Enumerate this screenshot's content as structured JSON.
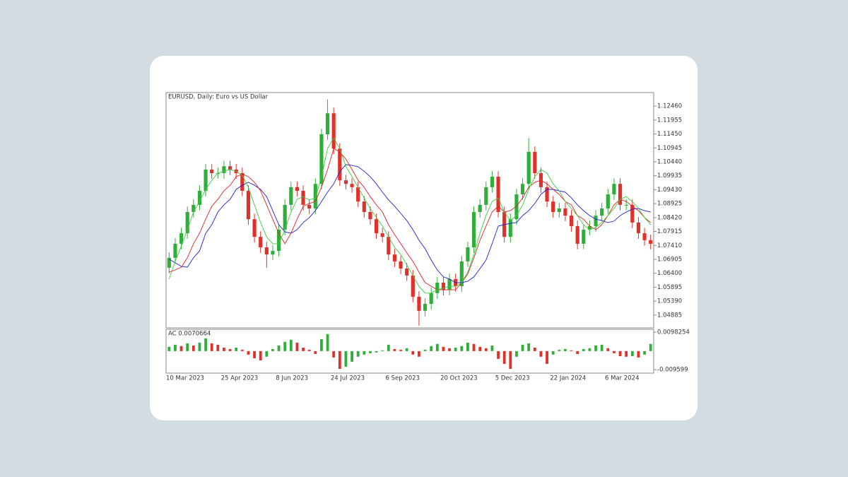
{
  "chart_data": [
    {
      "type": "candlestick",
      "title": "EURUSD, Daily:  Euro vs US Dollar",
      "up_color": "#2fae3a",
      "down_color": "#e0302a",
      "ylim": [
        1.0442,
        1.1295
      ],
      "yticks": [
        1.04885,
        {
          "value": 1.0539,
          "label": "1.05390"
        },
        1.05895,
        {
          "value": 1.064,
          "label": "1.06400"
        },
        1.06905,
        {
          "value": 1.0741,
          "label": "1.07410"
        },
        1.07915,
        {
          "value": 1.0842,
          "label": "1.08420"
        },
        1.08925,
        {
          "value": 1.0943,
          "label": "1.09430"
        },
        1.09935,
        {
          "value": 1.1044,
          "label": "1.10440"
        },
        1.10945,
        {
          "value": 1.1145,
          "label": "1.11450"
        },
        1.11955,
        {
          "value": 1.1246,
          "label": "1.12460"
        }
      ],
      "categories": [
        "10 Mar 2023",
        null,
        null,
        null,
        null,
        null,
        null,
        null,
        null,
        "25 Apr 2023",
        null,
        null,
        null,
        null,
        null,
        null,
        null,
        null,
        "8 Jun 2023",
        null,
        null,
        null,
        null,
        null,
        null,
        null,
        null,
        "24 Jul 2023",
        null,
        null,
        null,
        null,
        null,
        null,
        null,
        null,
        "6 Sep 2023",
        null,
        null,
        null,
        null,
        null,
        null,
        null,
        null,
        "20 Oct 2023",
        null,
        null,
        null,
        null,
        null,
        null,
        null,
        null,
        "5 Dec 2023",
        null,
        null,
        null,
        null,
        null,
        null,
        null,
        null,
        "22 Jan 2024",
        null,
        null,
        null,
        null,
        null,
        null,
        null,
        null,
        "6 Mar 2024",
        null,
        null,
        null,
        null,
        null,
        null,
        null
      ],
      "open": [
        1.066,
        1.0696,
        1.0747,
        1.0785,
        1.0862,
        1.0888,
        1.0939,
        1.1016,
        1.1003,
        1.1003,
        1.1028,
        1.1016,
        1.1003,
        1.0939,
        1.0836,
        1.0772,
        1.0734,
        1.0708,
        1.0721,
        1.0798,
        1.0888,
        1.0952,
        1.0939,
        1.0888,
        1.0875,
        1.0964,
        1.1144,
        1.122,
        1.1092,
        1.0977,
        1.0964,
        1.0952,
        1.09,
        1.0862,
        1.0836,
        1.0785,
        1.0772,
        1.0708,
        1.0683,
        1.0657,
        1.0632,
        1.0555,
        1.0504,
        1.0529,
        1.0568,
        1.0606,
        1.058,
        1.0619,
        1.0593,
        1.0683,
        1.0734,
        1.0862,
        1.0888,
        1.0952,
        1.099,
        1.0862,
        1.0772,
        1.0836,
        1.0926,
        1.0964,
        1.108,
        1.1003,
        1.0952,
        1.09,
        1.0862,
        1.0875,
        1.0849,
        1.0811,
        1.0747,
        1.0798,
        1.0811,
        1.0849,
        1.0875,
        1.0926,
        1.0964,
        1.0888,
        1.0888,
        1.0824,
        1.0785,
        1.076
      ],
      "high": [
        1.0716,
        1.0767,
        1.0805,
        1.0882,
        1.0908,
        1.0959,
        1.1036,
        1.1036,
        1.1023,
        1.1048,
        1.1048,
        1.1036,
        1.1023,
        1.0959,
        1.0856,
        1.0792,
        1.0754,
        1.0741,
        1.0818,
        1.0908,
        1.0972,
        1.0972,
        1.0959,
        1.0908,
        1.0984,
        1.1164,
        1.127,
        1.124,
        1.1112,
        1.0997,
        1.0984,
        1.0972,
        1.092,
        1.0882,
        1.0856,
        1.0805,
        1.0792,
        1.0728,
        1.0703,
        1.0677,
        1.0652,
        1.0575,
        1.0549,
        1.0588,
        1.0626,
        1.0626,
        1.0639,
        1.0639,
        1.0703,
        1.0754,
        1.0882,
        1.0908,
        1.0972,
        1.101,
        1.101,
        1.0882,
        1.0856,
        1.0946,
        1.0984,
        1.113,
        1.11,
        1.1023,
        1.0972,
        1.092,
        1.0895,
        1.0895,
        1.0869,
        1.0831,
        1.0818,
        1.0831,
        1.0869,
        1.0895,
        1.0946,
        1.0984,
        1.0984,
        1.0908,
        1.0908,
        1.0844,
        1.0805,
        1.078
      ],
      "low": [
        1.064,
        1.0676,
        1.0727,
        1.0765,
        1.0842,
        1.0868,
        1.0919,
        1.0983,
        1.0983,
        1.0983,
        1.0996,
        1.0983,
        1.0919,
        1.0816,
        1.0752,
        1.0714,
        1.066,
        1.0688,
        1.0701,
        1.0778,
        1.0868,
        1.0919,
        1.0868,
        1.0855,
        1.0855,
        1.0944,
        1.1124,
        1.1072,
        1.0957,
        1.0944,
        1.0932,
        1.088,
        1.0842,
        1.0816,
        1.0765,
        1.0752,
        1.0688,
        1.0663,
        1.0637,
        1.0612,
        1.0535,
        1.045,
        1.0484,
        1.0509,
        1.0548,
        1.056,
        1.056,
        1.0573,
        1.0573,
        1.0663,
        1.0714,
        1.0842,
        1.0868,
        1.0932,
        1.0842,
        1.0752,
        1.0752,
        1.0816,
        1.0906,
        1.0944,
        1.0983,
        1.0932,
        1.088,
        1.0842,
        1.0842,
        1.0829,
        1.0791,
        1.0727,
        1.0727,
        1.0778,
        1.0791,
        1.0829,
        1.0855,
        1.0906,
        1.0868,
        1.0868,
        1.0804,
        1.0765,
        1.074,
        1.0727
      ],
      "close": [
        1.0696,
        1.0747,
        1.0785,
        1.0862,
        1.0888,
        1.0939,
        1.1016,
        1.1003,
        1.1003,
        1.1028,
        1.1016,
        1.1003,
        1.0939,
        1.0836,
        1.0772,
        1.0734,
        1.0708,
        1.0721,
        1.0798,
        1.0888,
        1.0952,
        1.0939,
        1.0888,
        1.0875,
        1.0964,
        1.1144,
        1.122,
        1.1092,
        1.0977,
        1.0964,
        1.0952,
        1.09,
        1.0862,
        1.0836,
        1.0785,
        1.0772,
        1.0708,
        1.0683,
        1.0657,
        1.0632,
        1.0555,
        1.0504,
        1.0529,
        1.0568,
        1.0606,
        1.058,
        1.0619,
        1.0593,
        1.0683,
        1.0734,
        1.0862,
        1.0888,
        1.0952,
        1.099,
        1.0862,
        1.0772,
        1.0836,
        1.0926,
        1.0964,
        1.108,
        1.1003,
        1.0952,
        1.09,
        1.0862,
        1.0875,
        1.0849,
        1.0811,
        1.0747,
        1.0798,
        1.0811,
        1.0849,
        1.0875,
        1.0926,
        1.0964,
        1.0888,
        1.0888,
        1.0824,
        1.0785,
        1.076,
        1.0747
      ],
      "series": [
        {
          "color": "#2020c8",
          "values": [
            1.0691,
            1.0678,
            1.0665,
            1.0662,
            1.0696,
            1.0721,
            1.0785,
            1.0816,
            1.0862,
            1.0888,
            1.0908,
            1.0944,
            1.0959,
            1.097,
            1.0959,
            1.0944,
            1.0918,
            1.0867,
            1.0816,
            1.079,
            1.0785,
            1.0798,
            1.0824,
            1.0842,
            1.0867,
            1.09,
            1.0934,
            1.0964,
            1.1008,
            1.1034,
            1.1031,
            1.1026,
            1.101,
            1.099,
            1.0964,
            1.0934,
            1.0906,
            1.0883,
            1.0857,
            1.0831,
            1.0798,
            1.076,
            1.0729,
            1.0688,
            1.0652,
            1.0627,
            1.0619,
            1.0606,
            1.0606,
            1.0611,
            1.0627,
            1.0657,
            1.0688,
            1.0747,
            1.0811,
            1.0816,
            1.0821,
            1.0824,
            1.0849,
            1.0867,
            1.0893,
            1.0926,
            1.0944,
            1.0944,
            1.0939,
            1.0934,
            1.0913,
            1.0888,
            1.0867,
            1.0849,
            1.0836,
            1.0831,
            1.0824,
            1.0829,
            1.0849,
            1.0862,
            1.0872,
            1.0875,
            1.0867,
            1.0862
          ]
        },
        {
          "color": "#d82424",
          "values": [
            1.0644,
            1.0652,
            1.0662,
            1.0696,
            1.0747,
            1.0785,
            1.0836,
            1.0883,
            1.0908,
            1.0939,
            1.0959,
            1.099,
            1.1,
            1.099,
            1.097,
            1.0939,
            1.0888,
            1.0836,
            1.0785,
            1.0747,
            1.0785,
            1.0836,
            1.0883,
            1.0893,
            1.09,
            1.0952,
            1.1016,
            1.1092,
            1.108,
            1.1054,
            1.1016,
            1.0977,
            1.0952,
            1.0918,
            1.0888,
            1.0862,
            1.0816,
            1.078,
            1.0747,
            1.0714,
            1.0683,
            1.0644,
            1.0606,
            1.0593,
            1.058,
            1.058,
            1.058,
            1.058,
            1.0606,
            1.0637,
            1.0696,
            1.076,
            1.0811,
            1.0862,
            1.0883,
            1.0862,
            1.0867,
            1.0883,
            1.0913,
            1.0952,
            1.097,
            1.0977,
            1.0964,
            1.0944,
            1.0926,
            1.09,
            1.0888,
            1.0849,
            1.0836,
            1.0811,
            1.0798,
            1.0816,
            1.0849,
            1.0888,
            1.0908,
            1.09,
            1.0883,
            1.0867,
            1.0842,
            1.0824
          ]
        },
        {
          "color": "#3ccc3c",
          "values": [
            1.0619,
            1.0683,
            1.0739,
            1.0798,
            1.0862,
            1.09,
            1.0944,
            1.0977,
            1.1003,
            1.101,
            1.1016,
            1.101,
            1.0995,
            1.0952,
            1.0888,
            1.0824,
            1.0772,
            1.0747,
            1.0747,
            1.0798,
            1.0862,
            1.0908,
            1.0918,
            1.0906,
            1.0913,
            1.099,
            1.1092,
            1.1131,
            1.1092,
            1.1028,
            1.099,
            1.0952,
            1.0913,
            1.0875,
            1.0842,
            1.0811,
            1.0772,
            1.0734,
            1.0708,
            1.067,
            1.0632,
            1.0593,
            1.0568,
            1.0568,
            1.058,
            1.0586,
            1.0593,
            1.0593,
            1.0606,
            1.0644,
            1.0708,
            1.0785,
            1.0849,
            1.09,
            1.0913,
            1.0862,
            1.0831,
            1.0849,
            1.0888,
            1.0944,
            1.099,
            1.1016,
            1.1003,
            1.0964,
            1.0939,
            1.09,
            1.0875,
            1.0849,
            1.0816,
            1.0798,
            1.0806,
            1.0824,
            1.0849,
            1.0875,
            1.0908,
            1.0918,
            1.09,
            1.0875,
            1.0842,
            1.0816
          ]
        }
      ]
    },
    {
      "type": "histogram",
      "title": "AC 0.0070664",
      "up_color": "#2fae3a",
      "down_color": "#e0302a",
      "ylim": [
        -0.0114,
        0.0113
      ],
      "yticks": [
        0.0098254,
        -0.009599
      ],
      "values": [
        0.0022,
        0.0033,
        0.0026,
        0.004,
        0.0029,
        0.0044,
        0.0066,
        0.004,
        0.0033,
        0.0018,
        0.0011,
        0.0018,
        0.0007,
        -0.0018,
        -0.0037,
        -0.0048,
        -0.0029,
        0.0011,
        0.0029,
        0.0048,
        0.0059,
        0.0044,
        0.0018,
        0.0007,
        -0.0015,
        0.0062,
        0.0088,
        -0.0033,
        -0.0092,
        -0.0081,
        -0.0055,
        -0.0029,
        -0.0018,
        -0.0011,
        -0.0007,
        0.0004,
        0.0033,
        0.0011,
        0.0007,
        0.0015,
        -0.0018,
        -0.0029,
        0.0007,
        0.0026,
        0.0037,
        0.0022,
        0.0015,
        0.0018,
        0.0026,
        0.0044,
        0.0037,
        0.0022,
        0.0015,
        0.0029,
        -0.004,
        -0.0066,
        -0.0092,
        -0.0029,
        0.0033,
        0.004,
        0.0018,
        -0.0029,
        -0.0066,
        -0.0018,
        0.0007,
        0.0011,
        0.0004,
        -0.0015,
        0.0011,
        0.0015,
        0.0029,
        0.0033,
        0.0015,
        -0.0011,
        -0.0026,
        -0.0029,
        -0.0026,
        -0.0033,
        -0.0018,
        0.0037
      ]
    }
  ]
}
